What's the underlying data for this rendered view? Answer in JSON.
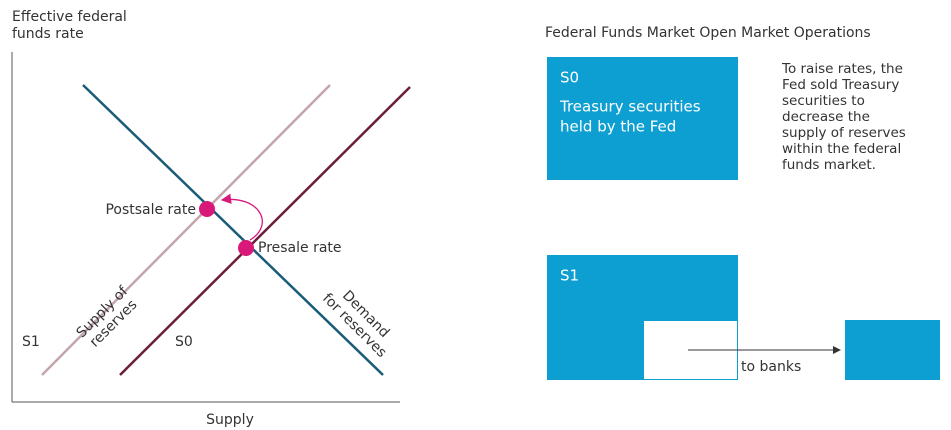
{
  "left_chart": {
    "y_axis_label": [
      "Effective federal",
      "funds rate"
    ],
    "x_axis_label": "Supply",
    "lines": {
      "s1_label": "S1",
      "s0_label": "S0",
      "supply_label": [
        "Supply of",
        "reserves"
      ],
      "demand_label": [
        "Demand",
        "for reserves"
      ]
    },
    "points": {
      "postsale": "Postsale rate",
      "presale": "Presale rate"
    }
  },
  "right_panel": {
    "title": "Federal Funds Market Open Market Operations",
    "s0_box": {
      "label": "S0",
      "text": [
        "Treasury securities",
        "held by the Fed"
      ]
    },
    "description": [
      "To raise rates, the",
      "Fed sold Treasury",
      "securities to",
      "decrease the",
      "supply of reserves",
      "within the federal",
      "funds market."
    ],
    "s1_box": {
      "label": "S1"
    },
    "arrow_label": "to banks"
  }
}
